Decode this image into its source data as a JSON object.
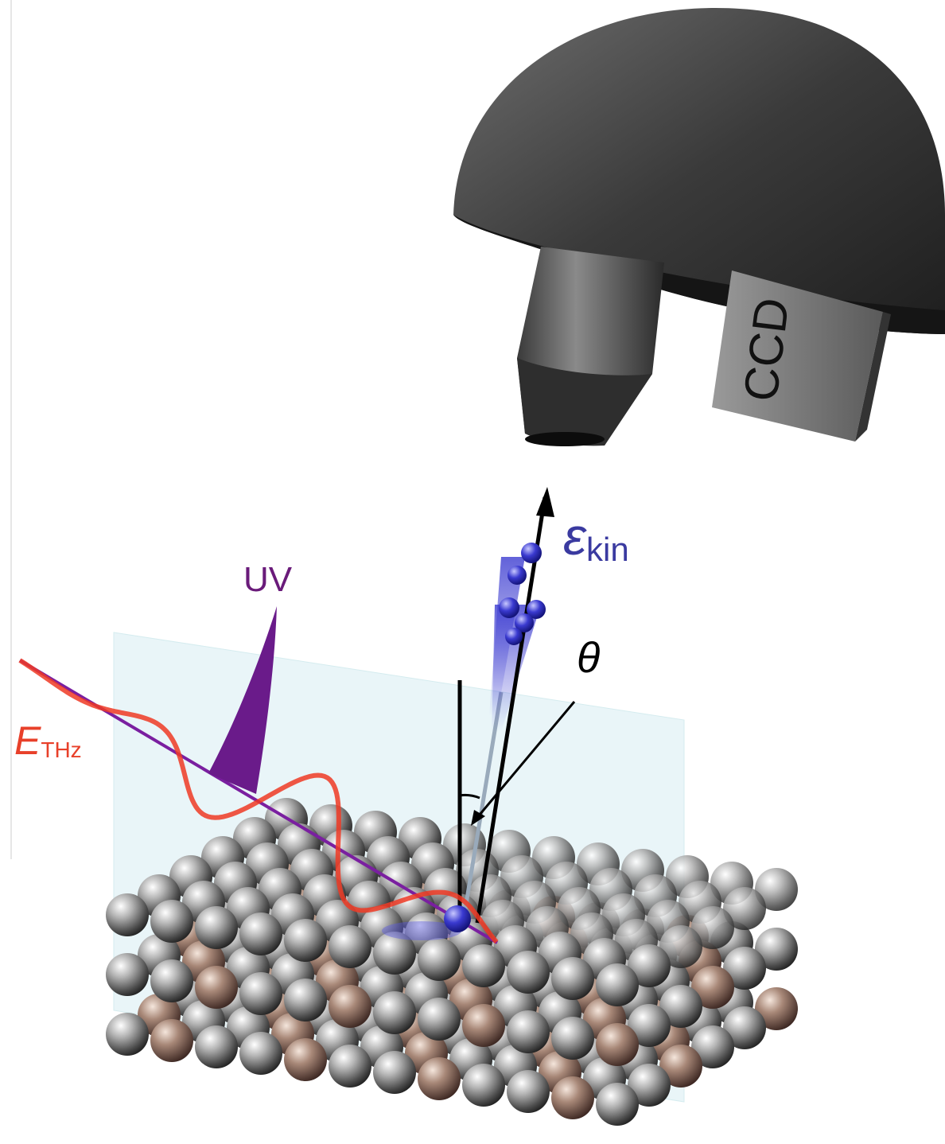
{
  "labels": {
    "ccd": "CCD",
    "energy": {
      "symbol": "ε",
      "subscript": "kin"
    },
    "uv": "UV",
    "angle": "θ",
    "field": {
      "symbol": "E",
      "subscript": "THz"
    }
  }
}
